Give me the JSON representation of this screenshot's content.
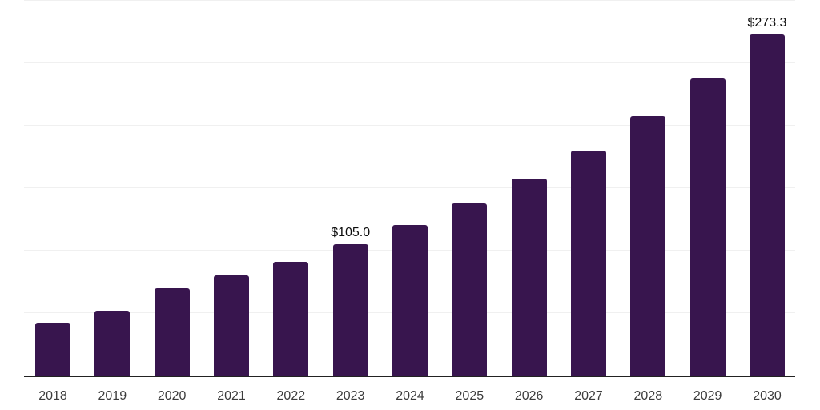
{
  "chart_data": {
    "type": "bar",
    "categories": [
      "2018",
      "2019",
      "2020",
      "2021",
      "2022",
      "2023",
      "2024",
      "2025",
      "2026",
      "2027",
      "2028",
      "2029",
      "2030"
    ],
    "values": [
      42.0,
      52.0,
      70.0,
      80.0,
      91.0,
      105.0,
      120.4,
      138.0,
      157.5,
      180.4,
      207.5,
      237.6,
      273.3
    ],
    "data_labels": [
      null,
      null,
      null,
      null,
      null,
      "$105.0",
      null,
      null,
      null,
      null,
      null,
      null,
      "$273.3"
    ],
    "title": "",
    "xlabel": "",
    "ylabel": "",
    "ylim": [
      0,
      300
    ],
    "grid_step": 50,
    "grid": true,
    "legend_position": "none"
  },
  "style": {
    "bar_color": "#38154e",
    "gridline_color": "#f0f0f0",
    "axis_line_color": "#222222",
    "tick_label_color": "#3c3c3c",
    "data_label_color": "#0d0d0d",
    "background_color": "#ffffff"
  }
}
